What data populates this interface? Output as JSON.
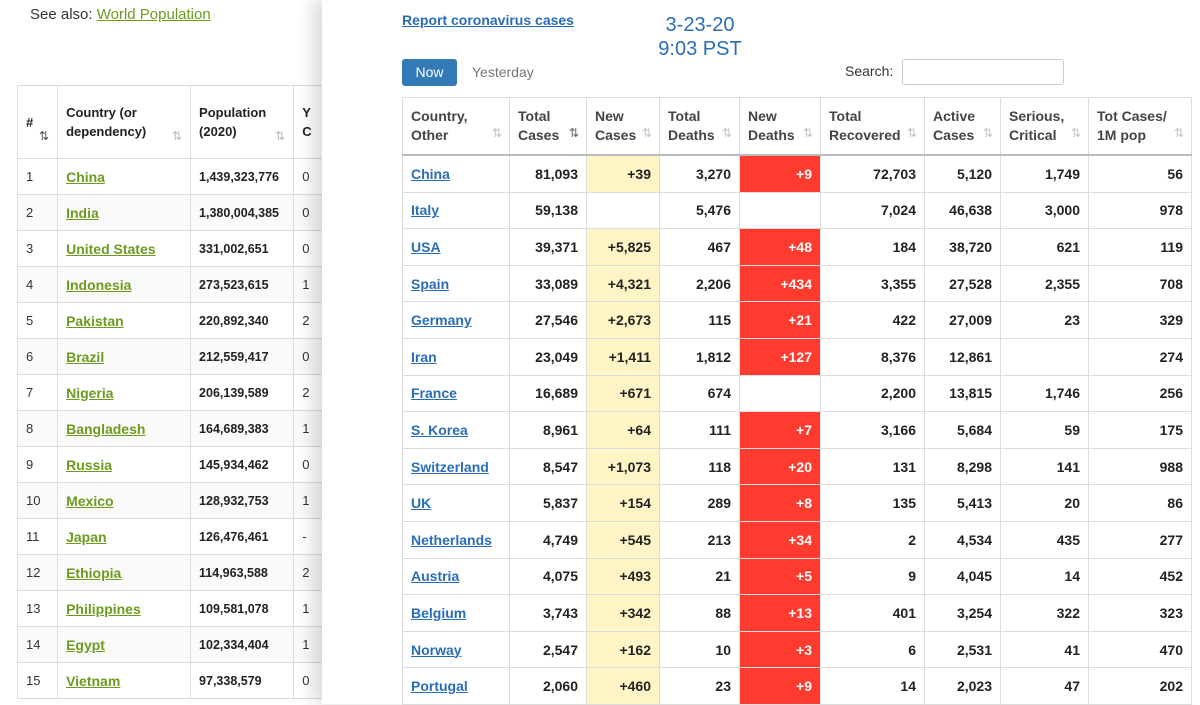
{
  "left_page": {
    "see_also_prefix": "See also:",
    "see_also_link": "World Population",
    "headers": {
      "rank": "#",
      "country": "Country (or dependency)",
      "population": "Population (2020)",
      "yearly_change": "Y C"
    },
    "rows": [
      {
        "rank": "1",
        "country": "China",
        "population": "1,439,323,776",
        "yc": "0"
      },
      {
        "rank": "2",
        "country": "India",
        "population": "1,380,004,385",
        "yc": "0"
      },
      {
        "rank": "3",
        "country": "United States",
        "population": "331,002,651",
        "yc": "0"
      },
      {
        "rank": "4",
        "country": "Indonesia",
        "population": "273,523,615",
        "yc": "1"
      },
      {
        "rank": "5",
        "country": "Pakistan",
        "population": "220,892,340",
        "yc": "2"
      },
      {
        "rank": "6",
        "country": "Brazil",
        "population": "212,559,417",
        "yc": "0"
      },
      {
        "rank": "7",
        "country": "Nigeria",
        "population": "206,139,589",
        "yc": "2"
      },
      {
        "rank": "8",
        "country": "Bangladesh",
        "population": "164,689,383",
        "yc": "1"
      },
      {
        "rank": "9",
        "country": "Russia",
        "population": "145,934,462",
        "yc": "0"
      },
      {
        "rank": "10",
        "country": "Mexico",
        "population": "128,932,753",
        "yc": "1"
      },
      {
        "rank": "11",
        "country": "Japan",
        "population": "126,476,461",
        "yc": "-"
      },
      {
        "rank": "12",
        "country": "Ethiopia",
        "population": "114,963,588",
        "yc": "2"
      },
      {
        "rank": "13",
        "country": "Philippines",
        "population": "109,581,078",
        "yc": "1"
      },
      {
        "rank": "14",
        "country": "Egypt",
        "population": "102,334,404",
        "yc": "1"
      },
      {
        "rank": "15",
        "country": "Vietnam",
        "population": "97,338,579",
        "yc": "0"
      }
    ]
  },
  "panel": {
    "report_link": "Report coronavirus cases",
    "date": "3-23-20",
    "time": "9:03 PST",
    "tabs": {
      "now": "Now",
      "yesterday": "Yesterday"
    },
    "search_label": "Search:",
    "search_value": "",
    "headers": [
      "Country, Other",
      "Total Cases",
      "New Cases",
      "Total Deaths",
      "New Deaths",
      "Total Recovered",
      "Active Cases",
      "Serious, Critical",
      "Tot Cases/ 1M pop"
    ],
    "rows": [
      {
        "country": "China",
        "total_cases": "81,093",
        "new_cases": "+39",
        "total_deaths": "3,270",
        "new_deaths": "+9",
        "total_recovered": "72,703",
        "active": "5,120",
        "serious": "1,749",
        "per_million": "56"
      },
      {
        "country": "Italy",
        "total_cases": "59,138",
        "new_cases": "",
        "total_deaths": "5,476",
        "new_deaths": "",
        "total_recovered": "7,024",
        "active": "46,638",
        "serious": "3,000",
        "per_million": "978"
      },
      {
        "country": "USA",
        "total_cases": "39,371",
        "new_cases": "+5,825",
        "total_deaths": "467",
        "new_deaths": "+48",
        "total_recovered": "184",
        "active": "38,720",
        "serious": "621",
        "per_million": "119"
      },
      {
        "country": "Spain",
        "total_cases": "33,089",
        "new_cases": "+4,321",
        "total_deaths": "2,206",
        "new_deaths": "+434",
        "total_recovered": "3,355",
        "active": "27,528",
        "serious": "2,355",
        "per_million": "708"
      },
      {
        "country": "Germany",
        "total_cases": "27,546",
        "new_cases": "+2,673",
        "total_deaths": "115",
        "new_deaths": "+21",
        "total_recovered": "422",
        "active": "27,009",
        "serious": "23",
        "per_million": "329"
      },
      {
        "country": "Iran",
        "total_cases": "23,049",
        "new_cases": "+1,411",
        "total_deaths": "1,812",
        "new_deaths": "+127",
        "total_recovered": "8,376",
        "active": "12,861",
        "serious": "",
        "per_million": "274"
      },
      {
        "country": "France",
        "total_cases": "16,689",
        "new_cases": "+671",
        "total_deaths": "674",
        "new_deaths": "",
        "total_recovered": "2,200",
        "active": "13,815",
        "serious": "1,746",
        "per_million": "256"
      },
      {
        "country": "S. Korea",
        "total_cases": "8,961",
        "new_cases": "+64",
        "total_deaths": "111",
        "new_deaths": "+7",
        "total_recovered": "3,166",
        "active": "5,684",
        "serious": "59",
        "per_million": "175"
      },
      {
        "country": "Switzerland",
        "total_cases": "8,547",
        "new_cases": "+1,073",
        "total_deaths": "118",
        "new_deaths": "+20",
        "total_recovered": "131",
        "active": "8,298",
        "serious": "141",
        "per_million": "988"
      },
      {
        "country": "UK",
        "total_cases": "5,837",
        "new_cases": "+154",
        "total_deaths": "289",
        "new_deaths": "+8",
        "total_recovered": "135",
        "active": "5,413",
        "serious": "20",
        "per_million": "86"
      },
      {
        "country": "Netherlands",
        "total_cases": "4,749",
        "new_cases": "+545",
        "total_deaths": "213",
        "new_deaths": "+34",
        "total_recovered": "2",
        "active": "4,534",
        "serious": "435",
        "per_million": "277"
      },
      {
        "country": "Austria",
        "total_cases": "4,075",
        "new_cases": "+493",
        "total_deaths": "21",
        "new_deaths": "+5",
        "total_recovered": "9",
        "active": "4,045",
        "serious": "14",
        "per_million": "452"
      },
      {
        "country": "Belgium",
        "total_cases": "3,743",
        "new_cases": "+342",
        "total_deaths": "88",
        "new_deaths": "+13",
        "total_recovered": "401",
        "active": "3,254",
        "serious": "322",
        "per_million": "323"
      },
      {
        "country": "Norway",
        "total_cases": "2,547",
        "new_cases": "+162",
        "total_deaths": "10",
        "new_deaths": "+3",
        "total_recovered": "6",
        "active": "2,531",
        "serious": "41",
        "per_million": "470"
      },
      {
        "country": "Portugal",
        "total_cases": "2,060",
        "new_cases": "+460",
        "total_deaths": "23",
        "new_deaths": "+9",
        "total_recovered": "14",
        "active": "2,023",
        "serious": "47",
        "per_million": "202"
      }
    ]
  },
  "colors": {
    "link_blue": "#2a6db7",
    "link_green": "#6c9b1f",
    "new_cases_bg": "#fff4c5",
    "new_deaths_bg": "#ff3b2f",
    "button_bg": "#337ab7"
  }
}
